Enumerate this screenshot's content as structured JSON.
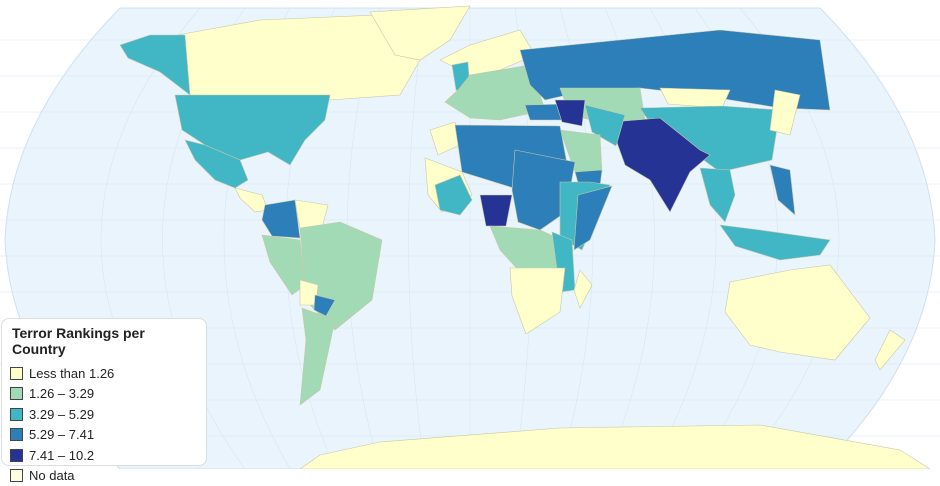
{
  "legend": {
    "title": "Terror Rankings per Country",
    "items": [
      {
        "label": "Less than 1.26",
        "color": "#ffffcc"
      },
      {
        "label": "1.26 – 3.29",
        "color": "#a1dab4"
      },
      {
        "label": "3.29 – 5.29",
        "color": "#41b6c4"
      },
      {
        "label": "5.29 – 7.41",
        "color": "#2c7fb8"
      },
      {
        "label": "7.41 – 10.2",
        "color": "#253494"
      },
      {
        "label": "No data",
        "color": "#fffde0"
      }
    ]
  },
  "map": {
    "ocean_color": "#eaf4fc",
    "graticule_color": "#d6e6f4"
  }
}
